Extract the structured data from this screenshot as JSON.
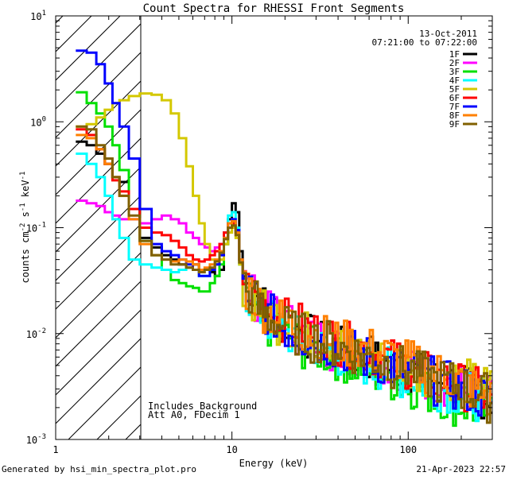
{
  "chart_data": {
    "type": "line",
    "title": "Count Spectra for RHESSI Front Segments",
    "xlabel": "Energy (keV)",
    "ylabel": "counts cm-2 s-1 keV-1",
    "xscale": "log",
    "yscale": "log",
    "xlim": [
      1,
      300
    ],
    "ylim": [
      0.001,
      10
    ],
    "x_tick_labels": [
      {
        "value": 1,
        "label": "1"
      },
      {
        "value": 10,
        "label": "10"
      },
      {
        "value": 100,
        "label": "100"
      }
    ],
    "y_tick_labels": [
      {
        "value": 0.001,
        "base": "10",
        "exp": "-3"
      },
      {
        "value": 0.01,
        "base": "10",
        "exp": "-2"
      },
      {
        "value": 0.1,
        "base": "10",
        "exp": "-1"
      },
      {
        "value": 1,
        "base": "10",
        "exp": "0"
      },
      {
        "value": 10,
        "base": "10",
        "exp": "1"
      }
    ],
    "legend_position": "top-right",
    "date": "13-Oct-2011",
    "time_range": "07:21:00 to 07:22:00",
    "excluded_region": {
      "x_max": 3
    },
    "annotations": [
      "Includes Background",
      "Att A0, FDecim 1"
    ],
    "series": [
      {
        "name": "1F",
        "color": "#000000",
        "x": [
          1.3,
          1.5,
          1.7,
          1.9,
          2.1,
          2.3,
          2.6,
          3.0,
          3.5,
          4,
          4.5,
          5,
          5.5,
          6,
          6.5,
          7,
          7.5,
          8,
          8.5,
          9,
          9.5,
          10,
          10.5,
          11,
          11.5,
          12,
          13,
          14,
          15,
          16,
          18,
          20,
          22,
          25,
          28,
          32,
          36,
          40,
          45,
          50,
          56,
          63,
          70,
          80,
          90,
          100,
          112,
          125,
          140,
          160,
          180,
          200,
          225,
          250,
          280
        ],
        "y": [
          0.65,
          0.6,
          0.5,
          0.4,
          0.3,
          0.27,
          0.15,
          0.08,
          0.065,
          0.055,
          0.05,
          0.045,
          0.042,
          0.045,
          0.04,
          0.04,
          0.038,
          0.035,
          0.04,
          0.07,
          0.12,
          0.17,
          0.14,
          0.06,
          0.035,
          0.028,
          0.024,
          0.02,
          0.018,
          0.016,
          0.013,
          0.012,
          0.011,
          0.0095,
          0.009,
          0.008,
          0.0075,
          0.007,
          0.0065,
          0.0065,
          0.006,
          0.0055,
          0.005,
          0.0048,
          0.0045,
          0.0043,
          0.004,
          0.0038,
          0.0036,
          0.0035,
          0.0033,
          0.003,
          0.0028,
          0.0026,
          0.0024
        ]
      },
      {
        "name": "2F",
        "color": "#ff00ff",
        "x": [
          1.3,
          1.5,
          1.7,
          1.9,
          2.1,
          2.3,
          2.6,
          3.0,
          3.5,
          4,
          4.5,
          5,
          5.5,
          6,
          6.5,
          7,
          7.5,
          8,
          8.5,
          9,
          9.5,
          10,
          10.5,
          11,
          11.5,
          12,
          13,
          14,
          15,
          16,
          18,
          20,
          22,
          25,
          28,
          32,
          36,
          40,
          45,
          50,
          56,
          63,
          70,
          80,
          90,
          100,
          112,
          125,
          140,
          160,
          180,
          200,
          225,
          250,
          280
        ],
        "y": [
          0.18,
          0.17,
          0.16,
          0.14,
          0.13,
          0.12,
          0.12,
          0.11,
          0.12,
          0.13,
          0.12,
          0.11,
          0.09,
          0.08,
          0.07,
          0.065,
          0.06,
          0.065,
          0.07,
          0.09,
          0.11,
          0.12,
          0.1,
          0.05,
          0.032,
          0.026,
          0.022,
          0.019,
          0.017,
          0.015,
          0.013,
          0.012,
          0.0105,
          0.0095,
          0.0088,
          0.008,
          0.0074,
          0.007,
          0.0066,
          0.0064,
          0.006,
          0.0055,
          0.0052,
          0.0049,
          0.0046,
          0.0043,
          0.004,
          0.0038,
          0.0036,
          0.0034,
          0.0032,
          0.003,
          0.0028,
          0.0026,
          0.0024
        ]
      },
      {
        "name": "3F",
        "color": "#00e000",
        "x": [
          1.3,
          1.5,
          1.7,
          1.9,
          2.1,
          2.3,
          2.6,
          3.0,
          3.5,
          4,
          4.5,
          5,
          5.5,
          6,
          6.5,
          7,
          7.5,
          8,
          8.5,
          9,
          9.5,
          10,
          10.5,
          11,
          11.5,
          12,
          13,
          14,
          15,
          16,
          18,
          20,
          22,
          25,
          28,
          32,
          36,
          40,
          45,
          50,
          56,
          63,
          70,
          80,
          90,
          100,
          112,
          125,
          140,
          160,
          180,
          200,
          225,
          250,
          280
        ],
        "y": [
          1.9,
          1.5,
          1.2,
          0.9,
          0.6,
          0.35,
          0.15,
          0.075,
          0.055,
          0.04,
          0.032,
          0.03,
          0.028,
          0.027,
          0.025,
          0.025,
          0.03,
          0.035,
          0.045,
          0.07,
          0.1,
          0.11,
          0.09,
          0.05,
          0.03,
          0.022,
          0.018,
          0.015,
          0.013,
          0.012,
          0.01,
          0.009,
          0.0082,
          0.0075,
          0.007,
          0.0065,
          0.006,
          0.0056,
          0.0052,
          0.005,
          0.0046,
          0.0042,
          0.004,
          0.0037,
          0.0034,
          0.0032,
          0.003,
          0.0028,
          0.0026,
          0.0024,
          0.0022,
          0.0021,
          0.002,
          0.0019,
          0.0018
        ]
      },
      {
        "name": "4F",
        "color": "#00ffff",
        "x": [
          1.3,
          1.5,
          1.7,
          1.9,
          2.1,
          2.3,
          2.6,
          3.0,
          3.5,
          4,
          4.5,
          5,
          5.5,
          6,
          6.5,
          7,
          7.5,
          8,
          8.5,
          9,
          9.5,
          10,
          10.5,
          11,
          11.5,
          12,
          13,
          14,
          15,
          16,
          18,
          20,
          22,
          25,
          28,
          32,
          36,
          40,
          45,
          50,
          56,
          63,
          70,
          80,
          90,
          100,
          112,
          125,
          140,
          160,
          180,
          200,
          225,
          250,
          280
        ],
        "y": [
          0.5,
          0.4,
          0.3,
          0.2,
          0.12,
          0.08,
          0.05,
          0.045,
          0.042,
          0.04,
          0.038,
          0.04,
          0.042,
          0.04,
          0.035,
          0.035,
          0.04,
          0.045,
          0.06,
          0.09,
          0.13,
          0.14,
          0.1,
          0.045,
          0.028,
          0.022,
          0.018,
          0.016,
          0.014,
          0.013,
          0.011,
          0.01,
          0.009,
          0.0083,
          0.0078,
          0.0072,
          0.0067,
          0.0063,
          0.0059,
          0.0056,
          0.0052,
          0.0048,
          0.0045,
          0.0042,
          0.004,
          0.0038,
          0.0035,
          0.0033,
          0.0031,
          0.003,
          0.0028,
          0.0026,
          0.0025,
          0.0023,
          0.0022
        ]
      },
      {
        "name": "5F",
        "color": "#d4c800",
        "x": [
          1.3,
          1.5,
          1.7,
          1.9,
          2.1,
          2.3,
          2.6,
          3.0,
          3.5,
          4,
          4.5,
          5,
          5.5,
          6,
          6.5,
          7,
          7.5,
          8,
          8.5,
          9,
          9.5,
          10,
          10.5,
          11,
          11.5,
          12,
          13,
          14,
          15,
          16,
          18,
          20,
          22,
          25,
          28,
          32,
          36,
          40,
          45,
          50,
          56,
          63,
          70,
          80,
          90,
          100,
          112,
          125,
          140,
          160,
          180,
          200,
          225,
          250,
          280
        ],
        "y": [
          0.9,
          0.95,
          1.1,
          1.3,
          1.5,
          1.6,
          1.75,
          1.85,
          1.8,
          1.6,
          1.2,
          0.7,
          0.38,
          0.2,
          0.11,
          0.07,
          0.05,
          0.045,
          0.05,
          0.07,
          0.09,
          0.1,
          0.08,
          0.045,
          0.03,
          0.025,
          0.021,
          0.018,
          0.016,
          0.015,
          0.013,
          0.012,
          0.011,
          0.01,
          0.0093,
          0.0087,
          0.0081,
          0.0076,
          0.0072,
          0.0068,
          0.0063,
          0.0058,
          0.0055,
          0.0052,
          0.0049,
          0.0047,
          0.0045,
          0.0043,
          0.0041,
          0.0039,
          0.0037,
          0.0035,
          0.0033,
          0.0031,
          0.003
        ]
      },
      {
        "name": "6F",
        "color": "#ff0000",
        "x": [
          1.3,
          1.5,
          1.7,
          1.9,
          2.1,
          2.3,
          2.6,
          3.0,
          3.5,
          4,
          4.5,
          5,
          5.5,
          6,
          6.5,
          7,
          7.5,
          8,
          8.5,
          9,
          9.5,
          10,
          10.5,
          11,
          11.5,
          12,
          13,
          14,
          15,
          16,
          18,
          20,
          22,
          25,
          28,
          32,
          36,
          40,
          45,
          50,
          56,
          63,
          70,
          80,
          90,
          100,
          112,
          125,
          140,
          160,
          180,
          200,
          225,
          250,
          280
        ],
        "y": [
          0.85,
          0.75,
          0.55,
          0.4,
          0.28,
          0.22,
          0.15,
          0.1,
          0.09,
          0.085,
          0.075,
          0.065,
          0.055,
          0.05,
          0.048,
          0.05,
          0.055,
          0.06,
          0.07,
          0.09,
          0.11,
          0.11,
          0.09,
          0.05,
          0.033,
          0.027,
          0.023,
          0.02,
          0.018,
          0.016,
          0.014,
          0.013,
          0.012,
          0.011,
          0.0102,
          0.0095,
          0.0088,
          0.0082,
          0.0077,
          0.0073,
          0.0068,
          0.0063,
          0.0058,
          0.0054,
          0.005,
          0.0047,
          0.0044,
          0.0041,
          0.0038,
          0.0036,
          0.0033,
          0.0031,
          0.0029,
          0.0027,
          0.0025
        ]
      },
      {
        "name": "7F",
        "color": "#0000ff",
        "x": [
          1.3,
          1.5,
          1.7,
          1.9,
          2.1,
          2.3,
          2.6,
          3.0,
          3.5,
          4,
          4.5,
          5,
          5.5,
          6,
          6.5,
          7,
          7.5,
          8,
          8.5,
          9,
          9.5,
          10,
          10.5,
          11,
          11.5,
          12,
          13,
          14,
          15,
          16,
          18,
          20,
          22,
          25,
          28,
          32,
          36,
          40,
          45,
          50,
          56,
          63,
          70,
          80,
          90,
          100,
          112,
          125,
          140,
          160,
          180,
          200,
          225,
          250,
          280
        ],
        "y": [
          4.7,
          4.5,
          3.5,
          2.3,
          1.5,
          0.9,
          0.45,
          0.15,
          0.07,
          0.06,
          0.055,
          0.05,
          0.045,
          0.04,
          0.035,
          0.035,
          0.04,
          0.045,
          0.055,
          0.08,
          0.11,
          0.12,
          0.095,
          0.05,
          0.031,
          0.025,
          0.021,
          0.018,
          0.016,
          0.014,
          0.012,
          0.011,
          0.01,
          0.0092,
          0.0086,
          0.008,
          0.0075,
          0.007,
          0.0066,
          0.0063,
          0.0059,
          0.0055,
          0.0051,
          0.0048,
          0.0045,
          0.0042,
          0.004,
          0.0037,
          0.0035,
          0.0033,
          0.0031,
          0.0029,
          0.0027,
          0.0025,
          0.0023
        ]
      },
      {
        "name": "8F",
        "color": "#ff8000",
        "x": [
          1.3,
          1.5,
          1.7,
          1.9,
          2.1,
          2.3,
          2.6,
          3.0,
          3.5,
          4,
          4.5,
          5,
          5.5,
          6,
          6.5,
          7,
          7.5,
          8,
          8.5,
          9,
          9.5,
          10,
          10.5,
          11,
          11.5,
          12,
          13,
          14,
          15,
          16,
          18,
          20,
          22,
          25,
          28,
          32,
          36,
          40,
          45,
          50,
          56,
          63,
          70,
          80,
          90,
          100,
          112,
          125,
          140,
          160,
          180,
          200,
          225,
          250,
          280
        ],
        "y": [
          0.75,
          0.7,
          0.55,
          0.4,
          0.3,
          0.2,
          0.12,
          0.07,
          0.055,
          0.05,
          0.048,
          0.05,
          0.048,
          0.045,
          0.04,
          0.042,
          0.045,
          0.05,
          0.06,
          0.08,
          0.11,
          0.115,
          0.09,
          0.05,
          0.032,
          0.026,
          0.022,
          0.019,
          0.017,
          0.0155,
          0.0135,
          0.0125,
          0.0115,
          0.0105,
          0.0098,
          0.0092,
          0.0086,
          0.0081,
          0.0077,
          0.0074,
          0.007,
          0.0066,
          0.0062,
          0.0058,
          0.0055,
          0.0052,
          0.0048,
          0.0045,
          0.0042,
          0.0039,
          0.0036,
          0.0033,
          0.003,
          0.0027,
          0.0024
        ]
      },
      {
        "name": "9F",
        "color": "#806000",
        "x": [
          1.3,
          1.5,
          1.7,
          1.9,
          2.1,
          2.3,
          2.6,
          3.0,
          3.5,
          4,
          4.5,
          5,
          5.5,
          6,
          6.5,
          7,
          7.5,
          8,
          8.5,
          9,
          9.5,
          10,
          10.5,
          11,
          11.5,
          12,
          13,
          14,
          15,
          16,
          18,
          20,
          22,
          25,
          28,
          32,
          36,
          40,
          45,
          50,
          56,
          63,
          70,
          80,
          90,
          100,
          112,
          125,
          140,
          160,
          180,
          200,
          225,
          250,
          280
        ],
        "y": [
          0.9,
          0.85,
          0.6,
          0.45,
          0.3,
          0.2,
          0.13,
          0.075,
          0.055,
          0.05,
          0.045,
          0.045,
          0.042,
          0.04,
          0.038,
          0.04,
          0.042,
          0.048,
          0.058,
          0.078,
          0.1,
          0.105,
          0.085,
          0.047,
          0.03,
          0.024,
          0.02,
          0.017,
          0.0155,
          0.014,
          0.0122,
          0.0112,
          0.0103,
          0.0094,
          0.0088,
          0.0082,
          0.0077,
          0.0072,
          0.0068,
          0.0065,
          0.0061,
          0.0057,
          0.0053,
          0.005,
          0.0047,
          0.0044,
          0.0041,
          0.0038,
          0.0036,
          0.0034,
          0.0032,
          0.003,
          0.0028,
          0.0026,
          0.0024
        ]
      }
    ]
  },
  "footer": {
    "generated_by": "Generated by hsi_min_spectra_plot.pro",
    "date": "21-Apr-2023 22:57"
  }
}
